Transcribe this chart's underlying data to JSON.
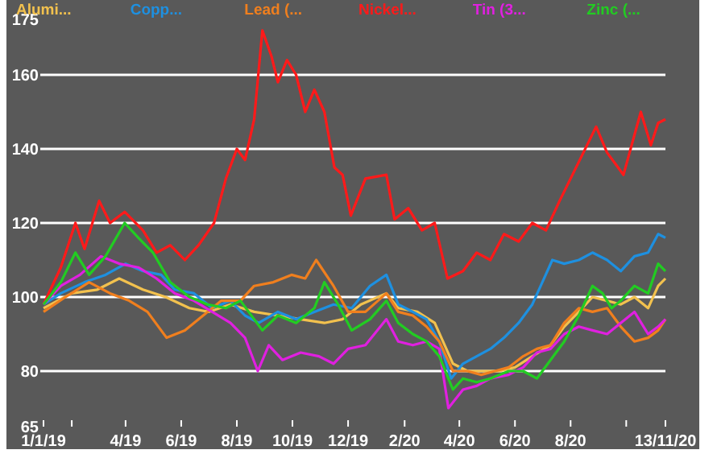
{
  "chart_data": {
    "type": "line",
    "legend": "top",
    "grid": "y",
    "line_style": "solid",
    "marker": "none",
    "xlim": [
      "2019-01-01",
      "2020-11-13"
    ],
    "xticks": [
      {
        "value": "2019-01-01",
        "label": "1/1/19"
      },
      {
        "value": "2019-02-01",
        "label": null
      },
      {
        "value": "2019-04-01",
        "label": "4/19"
      },
      {
        "value": "2019-06-01",
        "label": "6/19"
      },
      {
        "value": "2019-08-01",
        "label": "8/19"
      },
      {
        "value": "2019-10-01",
        "label": "10/19"
      },
      {
        "value": "2019-12-01",
        "label": "12/19"
      },
      {
        "value": "2020-02-01",
        "label": "2/20"
      },
      {
        "value": "2020-04-01",
        "label": "4/20"
      },
      {
        "value": "2020-06-01",
        "label": "6/20"
      },
      {
        "value": "2020-08-01",
        "label": "8/20"
      },
      {
        "value": "2020-10-01",
        "label": null
      },
      {
        "value": "2020-11-13",
        "label": "13/11/20"
      }
    ],
    "ylim": [
      65,
      175
    ],
    "yticks": [
      65,
      80,
      100,
      120,
      140,
      160,
      175
    ],
    "series": [
      {
        "name": "Alumi...",
        "color": "#f2c14e",
        "x": [
          "2019-01-01",
          "2019-02-01",
          "2019-03-01",
          "2019-03-25",
          "2019-04-20",
          "2019-05-15",
          "2019-06-10",
          "2019-07-01",
          "2019-07-25",
          "2019-08-20",
          "2019-09-15",
          "2019-10-10",
          "2019-11-05",
          "2019-11-25",
          "2019-12-15",
          "2020-01-12",
          "2020-01-25",
          "2020-02-15",
          "2020-03-05",
          "2020-03-25",
          "2020-04-10",
          "2020-04-25",
          "2020-05-15",
          "2020-06-01",
          "2020-06-20",
          "2020-07-10",
          "2020-07-25",
          "2020-08-10",
          "2020-08-25",
          "2020-09-10",
          "2020-09-25",
          "2020-10-10",
          "2020-10-25",
          "2020-11-05",
          "2020-11-13"
        ],
        "values": [
          97,
          101,
          102,
          105,
          102,
          100,
          97,
          96,
          98,
          96,
          95,
          94,
          93,
          94,
          98,
          101,
          97,
          96,
          93,
          82,
          80,
          80,
          80,
          81,
          84,
          87,
          92,
          96,
          100,
          99,
          98,
          100,
          97,
          103,
          105
        ]
      },
      {
        "name": "Copp...",
        "color": "#1e90e0",
        "x": [
          "2019-01-01",
          "2019-01-20",
          "2019-02-15",
          "2019-03-10",
          "2019-04-01",
          "2019-04-20",
          "2019-05-10",
          "2019-05-25",
          "2019-06-15",
          "2019-07-05",
          "2019-07-25",
          "2019-08-10",
          "2019-08-25",
          "2019-09-15",
          "2019-10-05",
          "2019-10-25",
          "2019-11-15",
          "2019-12-05",
          "2019-12-25",
          "2020-01-12",
          "2020-01-25",
          "2020-02-10",
          "2020-02-25",
          "2020-03-10",
          "2020-03-23",
          "2020-04-05",
          "2020-04-20",
          "2020-05-05",
          "2020-05-20",
          "2020-06-05",
          "2020-06-20",
          "2020-07-01",
          "2020-07-12",
          "2020-07-25",
          "2020-08-10",
          "2020-08-25",
          "2020-09-10",
          "2020-09-25",
          "2020-10-10",
          "2020-10-25",
          "2020-11-05",
          "2020-11-13"
        ],
        "values": [
          98,
          101,
          104,
          106,
          109,
          107,
          106,
          102,
          101,
          97,
          99,
          95,
          93,
          96,
          94,
          96,
          98,
          97,
          103,
          106,
          98,
          96,
          94,
          88,
          78,
          82,
          84,
          86,
          89,
          93,
          98,
          104,
          110,
          109,
          110,
          112,
          110,
          107,
          111,
          112,
          117,
          116
        ]
      },
      {
        "name": "Lead (...",
        "color": "#f07f1e",
        "x": [
          "2019-01-01",
          "2019-01-25",
          "2019-02-20",
          "2019-03-15",
          "2019-04-05",
          "2019-04-25",
          "2019-05-16",
          "2019-06-05",
          "2019-06-25",
          "2019-07-15",
          "2019-08-05",
          "2019-08-20",
          "2019-09-10",
          "2019-09-30",
          "2019-10-15",
          "2019-10-27",
          "2019-11-15",
          "2019-12-01",
          "2019-12-20",
          "2020-01-12",
          "2020-01-25",
          "2020-02-10",
          "2020-02-25",
          "2020-03-10",
          "2020-03-25",
          "2020-04-10",
          "2020-04-25",
          "2020-05-10",
          "2020-05-25",
          "2020-06-10",
          "2020-06-25",
          "2020-07-10",
          "2020-07-25",
          "2020-08-10",
          "2020-08-25",
          "2020-09-10",
          "2020-09-25",
          "2020-10-10",
          "2020-10-25",
          "2020-11-05",
          "2020-11-13"
        ],
        "values": [
          96,
          100,
          104,
          101,
          99,
          96,
          89,
          91,
          95,
          99,
          99,
          103,
          104,
          106,
          105,
          110,
          103,
          96,
          96,
          101,
          96,
          95,
          92,
          88,
          80,
          80,
          79,
          80,
          81,
          84,
          86,
          87,
          93,
          97,
          96,
          97,
          92,
          88,
          89,
          91,
          94
        ]
      },
      {
        "name": "Nickel...",
        "color": "#ff1a1a",
        "x": [
          "2019-01-01",
          "2019-01-20",
          "2019-02-05",
          "2019-02-15",
          "2019-03-03",
          "2019-03-15",
          "2019-03-31",
          "2019-04-20",
          "2019-05-05",
          "2019-05-20",
          "2019-06-05",
          "2019-06-20",
          "2019-07-07",
          "2019-07-20",
          "2019-08-01",
          "2019-08-10",
          "2019-08-20",
          "2019-08-29",
          "2019-09-08",
          "2019-09-15",
          "2019-09-25",
          "2019-10-05",
          "2019-10-15",
          "2019-10-25",
          "2019-11-05",
          "2019-11-16",
          "2019-11-25",
          "2019-12-04",
          "2019-12-20",
          "2020-01-12",
          "2020-01-21",
          "2020-02-05",
          "2020-02-20",
          "2020-03-05",
          "2020-03-19",
          "2020-04-05",
          "2020-04-20",
          "2020-05-05",
          "2020-05-20",
          "2020-06-05",
          "2020-06-20",
          "2020-07-05",
          "2020-07-20",
          "2020-08-05",
          "2020-08-29",
          "2020-09-10",
          "2020-09-28",
          "2020-10-17",
          "2020-10-28",
          "2020-11-05",
          "2020-11-13"
        ],
        "values": [
          98,
          108,
          120,
          113,
          126,
          120,
          123,
          118,
          112,
          114,
          110,
          114,
          120,
          132,
          140,
          137,
          148,
          172,
          165,
          158,
          164,
          160,
          150,
          156,
          150,
          135,
          133,
          122,
          132,
          133,
          121,
          124,
          118,
          120,
          105,
          107,
          112,
          110,
          117,
          115,
          120,
          118,
          126,
          134,
          146,
          139,
          133,
          150,
          141,
          147,
          148
        ]
      },
      {
        "name": "Tin (3...",
        "color": "#e020e0",
        "x": [
          "2019-01-01",
          "2019-01-20",
          "2019-02-10",
          "2019-03-05",
          "2019-03-25",
          "2019-04-15",
          "2019-05-05",
          "2019-05-25",
          "2019-06-15",
          "2019-07-05",
          "2019-07-25",
          "2019-08-10",
          "2019-08-24",
          "2019-09-05",
          "2019-09-20",
          "2019-10-10",
          "2019-10-30",
          "2019-11-15",
          "2019-12-01",
          "2019-12-20",
          "2020-01-12",
          "2020-01-25",
          "2020-02-10",
          "2020-02-25",
          "2020-03-10",
          "2020-03-20",
          "2020-04-05",
          "2020-04-20",
          "2020-05-05",
          "2020-05-25",
          "2020-06-10",
          "2020-06-25",
          "2020-07-10",
          "2020-07-25",
          "2020-08-10",
          "2020-08-25",
          "2020-09-10",
          "2020-09-25",
          "2020-10-10",
          "2020-10-25",
          "2020-11-05",
          "2020-11-13"
        ],
        "values": [
          98,
          103,
          106,
          111,
          109,
          108,
          105,
          101,
          99,
          96,
          93,
          89,
          80,
          87,
          83,
          85,
          84,
          82,
          86,
          87,
          94,
          88,
          87,
          88,
          86,
          70,
          75,
          76,
          78,
          79,
          81,
          85,
          86,
          90,
          92,
          91,
          90,
          93,
          96,
          90,
          92,
          94
        ]
      },
      {
        "name": "Zinc (...",
        "color": "#22cc22",
        "x": [
          "2019-01-01",
          "2019-01-20",
          "2019-02-05",
          "2019-02-20",
          "2019-03-10",
          "2019-03-31",
          "2019-04-15",
          "2019-05-01",
          "2019-05-20",
          "2019-06-10",
          "2019-06-30",
          "2019-07-20",
          "2019-08-05",
          "2019-08-20",
          "2019-08-29",
          "2019-09-15",
          "2019-10-05",
          "2019-10-25",
          "2019-11-05",
          "2019-11-20",
          "2019-12-05",
          "2019-12-25",
          "2020-01-12",
          "2020-01-25",
          "2020-02-10",
          "2020-02-25",
          "2020-03-10",
          "2020-03-25",
          "2020-04-05",
          "2020-04-20",
          "2020-05-05",
          "2020-05-25",
          "2020-06-10",
          "2020-06-25",
          "2020-07-10",
          "2020-07-25",
          "2020-08-10",
          "2020-08-25",
          "2020-09-05",
          "2020-09-15",
          "2020-09-25",
          "2020-10-10",
          "2020-10-25",
          "2020-11-05",
          "2020-11-13"
        ],
        "values": [
          98,
          104,
          112,
          106,
          111,
          120,
          116,
          112,
          104,
          100,
          98,
          97,
          99,
          94,
          91,
          95,
          93,
          97,
          104,
          98,
          91,
          94,
          99,
          93,
          90,
          88,
          84,
          75,
          78,
          77,
          78,
          80,
          80,
          78,
          83,
          88,
          95,
          103,
          101,
          97,
          99,
          103,
          101,
          109,
          107
        ]
      }
    ]
  }
}
